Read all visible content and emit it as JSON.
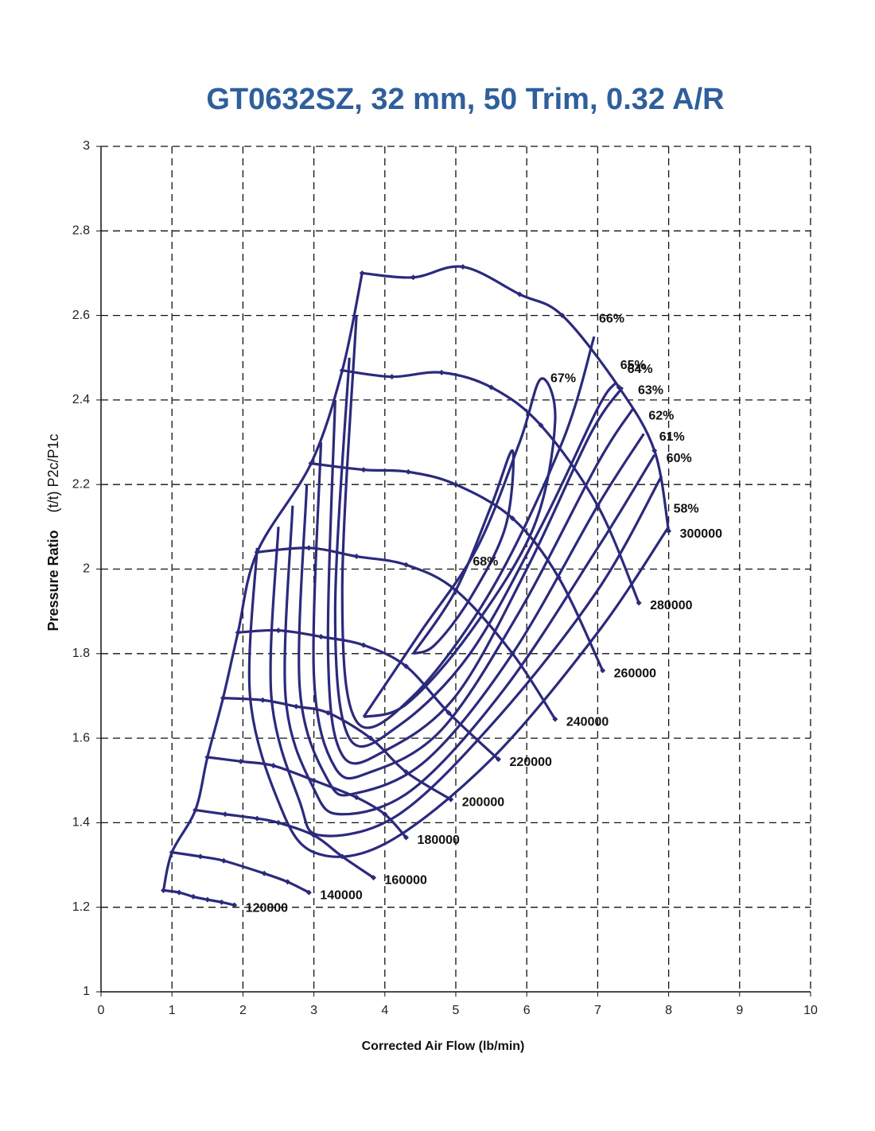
{
  "chart_data": {
    "type": "line",
    "title": "GT0632SZ, 32 mm, 50 Trim, 0.32 A/R",
    "xlabel": "Corrected Air Flow (lb/min)",
    "ylabel": "Pressure Ratio",
    "ylabel_units": "(t/t) P2c/P1c",
    "xlim": [
      0,
      10
    ],
    "ylim": [
      1,
      3
    ],
    "xticks": [
      0,
      1,
      2,
      3,
      4,
      5,
      6,
      7,
      8,
      9,
      10
    ],
    "yticks": [
      1,
      1.2,
      1.4,
      1.6,
      1.8,
      2,
      2.2,
      2.4,
      2.6,
      2.8,
      3
    ],
    "grid": true,
    "color": "#2b2a7c",
    "series": [
      {
        "name": "120000",
        "x": [
          0.88,
          1.1,
          1.3,
          1.5,
          1.7,
          1.88
        ],
        "y": [
          1.24,
          1.235,
          1.225,
          1.218,
          1.212,
          1.205
        ]
      },
      {
        "name": "140000",
        "x": [
          1.0,
          1.4,
          1.73,
          2.3,
          2.63,
          2.93
        ],
        "y": [
          1.33,
          1.32,
          1.31,
          1.28,
          1.26,
          1.235
        ]
      },
      {
        "name": "160000",
        "x": [
          1.33,
          1.75,
          2.2,
          2.5,
          3.0,
          3.4,
          3.84
        ],
        "y": [
          1.43,
          1.42,
          1.41,
          1.4,
          1.37,
          1.32,
          1.27
        ]
      },
      {
        "name": "180000",
        "x": [
          1.5,
          1.97,
          2.43,
          3.0,
          3.6,
          4.0,
          4.3
        ],
        "y": [
          1.555,
          1.545,
          1.535,
          1.5,
          1.46,
          1.42,
          1.365
        ]
      },
      {
        "name": "200000",
        "x": [
          1.72,
          2.28,
          2.75,
          3.2,
          3.8,
          4.3,
          4.93
        ],
        "y": [
          1.695,
          1.69,
          1.675,
          1.66,
          1.6,
          1.52,
          1.455
        ]
      },
      {
        "name": "220000",
        "x": [
          1.93,
          2.5,
          3.1,
          3.7,
          4.3,
          4.9,
          5.6
        ],
        "y": [
          1.85,
          1.855,
          1.84,
          1.82,
          1.77,
          1.66,
          1.55
        ]
      },
      {
        "name": "240000",
        "x": [
          2.2,
          2.93,
          3.6,
          4.3,
          5.0,
          5.8,
          6.4
        ],
        "y": [
          2.04,
          2.05,
          2.03,
          2.01,
          1.95,
          1.8,
          1.645
        ]
      },
      {
        "name": "260000",
        "x": [
          2.96,
          3.7,
          4.33,
          5.0,
          5.8,
          6.45,
          7.07
        ],
        "y": [
          2.25,
          2.235,
          2.23,
          2.2,
          2.12,
          1.98,
          1.76
        ]
      },
      {
        "name": "280000",
        "x": [
          3.4,
          4.1,
          4.8,
          5.5,
          6.2,
          7.0,
          7.58
        ],
        "y": [
          2.47,
          2.455,
          2.465,
          2.43,
          2.34,
          2.15,
          1.92
        ]
      },
      {
        "name": "300000",
        "x": [
          3.68,
          4.4,
          5.1,
          5.9,
          6.5,
          7.3,
          7.8,
          8.0
        ],
        "y": [
          2.7,
          2.69,
          2.715,
          2.65,
          2.6,
          2.43,
          2.28,
          2.09
        ]
      }
    ],
    "efficiency_contours": [
      {
        "name": "58%",
        "x": [
          2.2,
          2.1,
          2.5,
          3.0,
          4.0,
          5.5,
          7.0,
          8.0
        ],
        "y": [
          2.05,
          1.7,
          1.45,
          1.33,
          1.35,
          1.55,
          1.85,
          2.1
        ]
      },
      {
        "name": "60%",
        "x": [
          2.5,
          2.4,
          2.8,
          3.1,
          4.2,
          5.6,
          7.0,
          7.9
        ],
        "y": [
          2.1,
          1.7,
          1.45,
          1.37,
          1.42,
          1.65,
          1.95,
          2.22
        ]
      },
      {
        "name": "61%",
        "x": [
          2.7,
          2.6,
          3.0,
          3.4,
          4.4,
          5.7,
          7.0,
          7.8
        ],
        "y": [
          2.15,
          1.7,
          1.48,
          1.42,
          1.48,
          1.72,
          2.05,
          2.27
        ]
      },
      {
        "name": "62%",
        "x": [
          2.9,
          2.8,
          3.2,
          3.6,
          4.6,
          5.8,
          7.0,
          7.65
        ],
        "y": [
          2.2,
          1.72,
          1.5,
          1.47,
          1.55,
          1.8,
          2.15,
          2.32
        ]
      },
      {
        "name": "63%",
        "x": [
          3.1,
          3.0,
          3.3,
          3.8,
          4.8,
          5.9,
          7.0,
          7.5
        ],
        "y": [
          2.3,
          1.75,
          1.53,
          1.52,
          1.62,
          1.9,
          2.25,
          2.38
        ]
      },
      {
        "name": "64%",
        "x": [
          3.3,
          3.2,
          3.4,
          4.0,
          5.0,
          6.0,
          6.9,
          7.35
        ],
        "y": [
          2.4,
          1.8,
          1.56,
          1.57,
          1.7,
          2.0,
          2.32,
          2.43
        ]
      },
      {
        "name": "65%",
        "x": [
          3.5,
          3.3,
          3.5,
          4.2,
          5.2,
          6.2,
          7.0,
          7.25
        ],
        "y": [
          2.5,
          1.9,
          1.6,
          1.63,
          1.8,
          2.1,
          2.38,
          2.44
        ]
      },
      {
        "name": "66%",
        "x": [
          3.6,
          3.4,
          3.6,
          4.4,
          5.5,
          6.5,
          6.95
        ],
        "y": [
          2.6,
          1.95,
          1.64,
          1.7,
          1.95,
          2.3,
          2.55
        ]
      },
      {
        "name": "67%",
        "x": [
          3.7,
          4.5,
          5.3,
          5.9,
          6.2,
          6.4,
          6.1,
          5.2,
          4.3,
          3.7
        ],
        "y": [
          1.65,
          1.85,
          2.05,
          2.3,
          2.45,
          2.35,
          2.1,
          1.85,
          1.68,
          1.65
        ]
      },
      {
        "name": "68%",
        "x": [
          4.4,
          5.0,
          5.5,
          5.8,
          5.7,
          5.2,
          4.7,
          4.4
        ],
        "y": [
          1.8,
          1.95,
          2.15,
          2.28,
          2.1,
          1.93,
          1.82,
          1.8
        ]
      }
    ]
  }
}
